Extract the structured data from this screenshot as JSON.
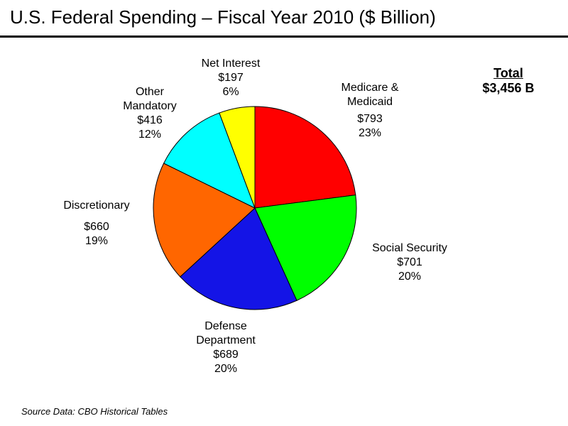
{
  "title": "U.S. Federal Spending – Fiscal Year 2010 ($ Billion)",
  "total": {
    "heading": "Total",
    "value": "$3,456 B"
  },
  "source": "Source Data:  CBO Historical Tables",
  "chart_data": {
    "type": "pie",
    "title": "U.S. Federal Spending – Fiscal Year 2010 ($ Billion)",
    "unit": "$ Billion",
    "total": 3456,
    "slices": [
      {
        "label": [
          "Medicare &",
          "Medicaid"
        ],
        "value": 793,
        "value_label": "$793",
        "percent": 23,
        "percent_label": "23%",
        "color": "#ff0000"
      },
      {
        "label": [
          "Social Security"
        ],
        "value": 701,
        "value_label": "$701",
        "percent": 20,
        "percent_label": "20%",
        "color": "#00ff00"
      },
      {
        "label": [
          "Defense",
          "Department"
        ],
        "value": 689,
        "value_label": "$689",
        "percent": 20,
        "percent_label": "20%",
        "color": "#1414e6"
      },
      {
        "label": [
          "Discretionary"
        ],
        "value": 660,
        "value_label": "$660",
        "percent": 19,
        "percent_label": "19%",
        "color": "#ff6600"
      },
      {
        "label": [
          "Other",
          "Mandatory"
        ],
        "value": 416,
        "value_label": "$416",
        "percent": 12,
        "percent_label": "12%",
        "color": "#00ffff"
      },
      {
        "label": [
          "Net Interest"
        ],
        "value": 197,
        "value_label": "$197",
        "percent": 6,
        "percent_label": "6%",
        "color": "#ffff00"
      }
    ],
    "start": "12 o'clock",
    "direction": "clockwise"
  }
}
